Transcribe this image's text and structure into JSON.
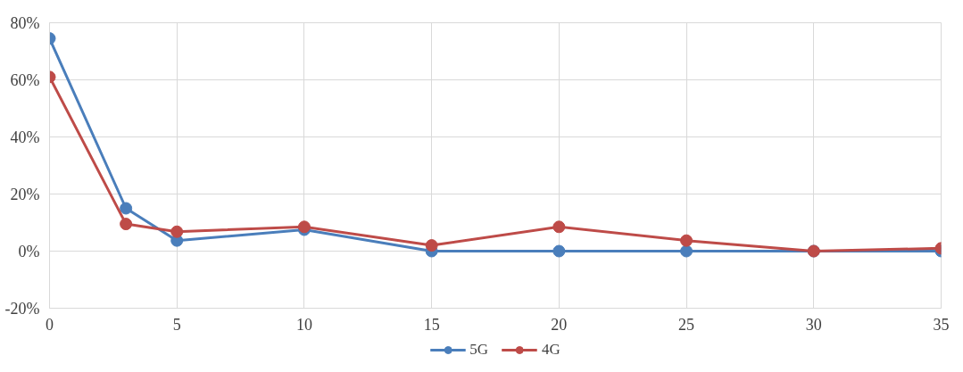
{
  "chart_data": {
    "type": "line",
    "x": [
      0,
      3,
      5,
      10,
      15,
      20,
      25,
      30,
      35
    ],
    "series": [
      {
        "name": "5G",
        "color": "#4a7ebb",
        "values": [
          74.5,
          15,
          3.7,
          7.5,
          0,
          0,
          0,
          0,
          0
        ]
      },
      {
        "name": "4G",
        "color": "#be4b48",
        "values": [
          61,
          9.5,
          6.8,
          8.5,
          2,
          8.5,
          3.7,
          0,
          1
        ]
      }
    ],
    "xlim": [
      0,
      35
    ],
    "xticks": [
      0,
      5,
      10,
      15,
      20,
      25,
      30,
      35
    ],
    "ylim": [
      -20,
      80
    ],
    "yticks": [
      {
        "value": -20,
        "label": "-20%"
      },
      {
        "value": 0,
        "label": "0%"
      },
      {
        "value": 20,
        "label": "20%"
      },
      {
        "value": 40,
        "label": "40%"
      },
      {
        "value": 60,
        "label": "60%"
      },
      {
        "value": 80,
        "label": "80%"
      }
    ],
    "grid": true,
    "legend": "bottom",
    "marker": "circle",
    "line_style": "solid"
  }
}
